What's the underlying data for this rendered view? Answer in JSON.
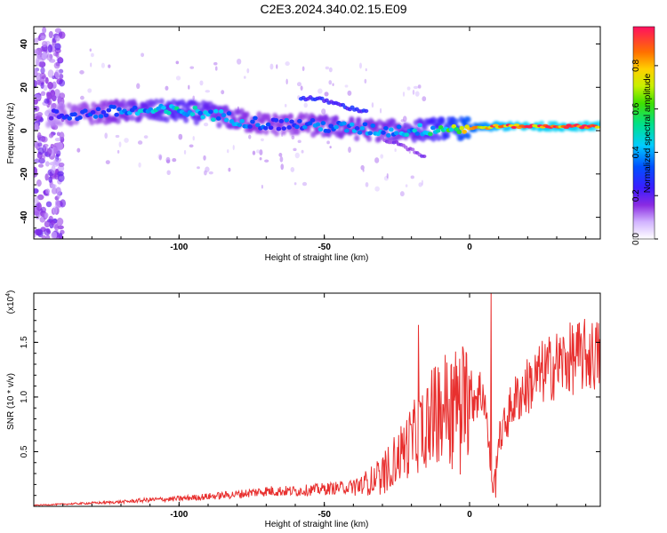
{
  "title": "C2E3.2024.340.02.15.E09",
  "colors": {
    "line": "#e8302f",
    "frame": "#000000"
  },
  "chart_data": [
    {
      "type": "heatmap",
      "xlabel": "Height of straight line (km)",
      "ylabel": "Frequency (Hz)",
      "xlim": [
        -150,
        45
      ],
      "ylim": [
        -50,
        48
      ],
      "xticks": [
        "-100",
        "-50",
        "0"
      ],
      "xtick_values": [
        -100,
        -50,
        0
      ],
      "yticks": [
        "-40",
        "-20",
        "0",
        "20",
        "40"
      ],
      "ytick_values": [
        -40,
        -20,
        0,
        20,
        40
      ],
      "colorbar": {
        "label": "Normalized spectral amplitude",
        "range": [
          0,
          0.98
        ],
        "ticks": [
          "0.0",
          "0.2",
          "0.4",
          "0.6",
          "0.8"
        ],
        "tick_values": [
          0.0,
          0.2,
          0.4,
          0.6,
          0.8
        ]
      },
      "ridge": {
        "height_km": [
          -148,
          -140,
          -130,
          -120,
          -110,
          -100,
          -90,
          -80,
          -70,
          -60,
          -50,
          -40,
          -30,
          -20,
          -10,
          0,
          10,
          20,
          30,
          45
        ],
        "frequency_hz": [
          7,
          7,
          8,
          9,
          9,
          9,
          8,
          5,
          3,
          3,
          2,
          1,
          0,
          0,
          1,
          1,
          2,
          2,
          2,
          2
        ],
        "amplitude": [
          0.15,
          0.25,
          0.3,
          0.35,
          0.4,
          0.45,
          0.4,
          0.35,
          0.3,
          0.3,
          0.35,
          0.35,
          0.35,
          0.4,
          0.5,
          0.7,
          0.85,
          0.9,
          0.9,
          0.9
        ]
      },
      "upper_branch": {
        "height_km": [
          -58,
          -55,
          -50,
          -45,
          -40,
          -35
        ],
        "frequency_hz": [
          15,
          15,
          14,
          12,
          10,
          9
        ]
      },
      "lower_branch": {
        "height_km": [
          -30,
          -25,
          -20,
          -15
        ],
        "frequency_hz": [
          -4,
          -6,
          -9,
          -13
        ]
      }
    },
    {
      "type": "line",
      "xlabel": "Height of straight line (km)",
      "ylabel": "SNR (10 * v/v)",
      "y_multiplier": "(x10",
      "y_multiplier_exp": "4",
      "y_multiplier_close": ")",
      "xlim": [
        -150,
        45
      ],
      "ylim": [
        0,
        1.95
      ],
      "xticks": [
        "-100",
        "-50",
        "0"
      ],
      "xtick_values": [
        -100,
        -50,
        0
      ],
      "yticks": [
        "0.5",
        "1.0",
        "1.5"
      ],
      "ytick_values": [
        0.5,
        1.0,
        1.5
      ],
      "envelope": {
        "x": [
          -150,
          -140,
          -130,
          -120,
          -110,
          -100,
          -90,
          -80,
          -70,
          -60,
          -50,
          -40,
          -35,
          -30,
          -25,
          -20,
          -15,
          -10,
          -5,
          0,
          5,
          8,
          10,
          15,
          20,
          25,
          30,
          35,
          40,
          45
        ],
        "y": [
          0.01,
          0.02,
          0.03,
          0.04,
          0.06,
          0.07,
          0.09,
          0.11,
          0.14,
          0.14,
          0.16,
          0.18,
          0.22,
          0.3,
          0.45,
          0.6,
          0.75,
          0.92,
          0.95,
          1.0,
          1.05,
          0.12,
          0.6,
          0.95,
          1.1,
          1.22,
          1.3,
          1.35,
          1.38,
          1.38
        ]
      },
      "peaks": [
        {
          "x": -17.5,
          "y": 1.66
        },
        {
          "x": 7.5,
          "y": 1.95
        },
        {
          "x": 9.0,
          "y": 0.08
        }
      ]
    }
  ]
}
